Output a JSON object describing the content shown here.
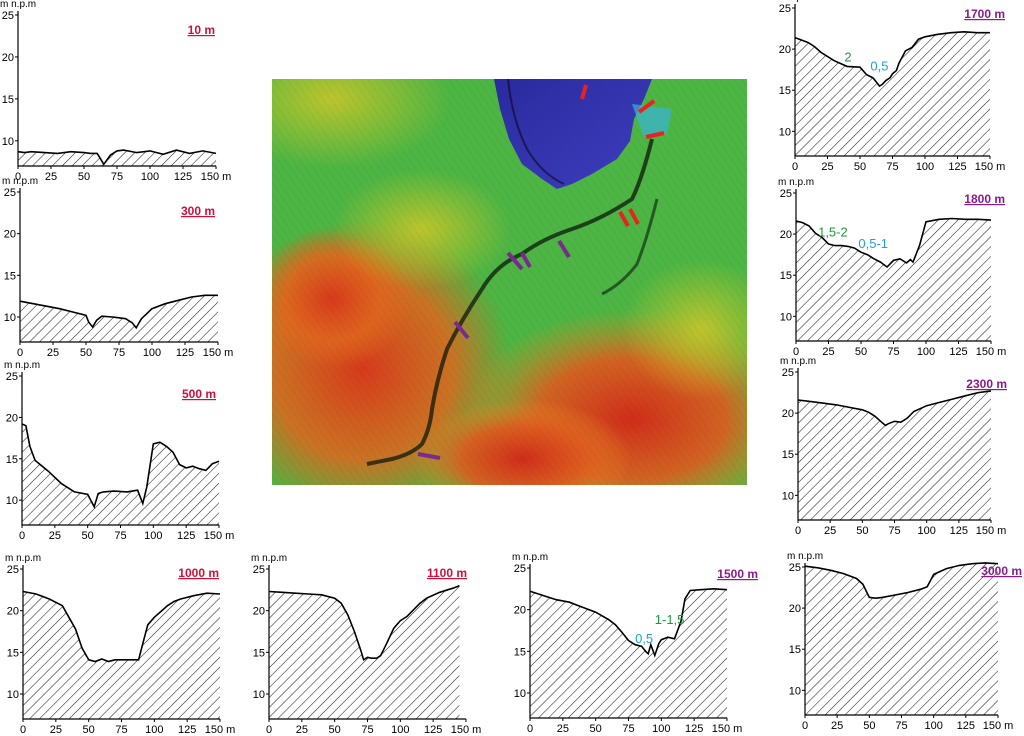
{
  "colors": {
    "label_red": "#d0103a",
    "label_purple": "#8a1b8f",
    "ann_green": "#1e9a3c",
    "ann_blue": "#1fa0d8",
    "marker_red": "#e8231f",
    "marker_purple": "#7a2a8e"
  },
  "common": {
    "y_unit": "m n.p.m",
    "x_unit": "m"
  },
  "map": {
    "name": "shaded-relief-elevation-map"
  },
  "chart_data": [
    {
      "id": "p10",
      "type": "area",
      "label": "10 m",
      "label_color": "#d0103a",
      "x": [
        0,
        5,
        10,
        20,
        30,
        40,
        50,
        55,
        60,
        65,
        70,
        75,
        80,
        90,
        100,
        110,
        120,
        130,
        140,
        150
      ],
      "y": [
        8.7,
        8.6,
        8.7,
        8.6,
        8.5,
        8.7,
        8.6,
        8.5,
        8.5,
        7.2,
        8.3,
        8.8,
        8.9,
        8.6,
        8.8,
        8.4,
        8.9,
        8.5,
        8.8,
        8.5
      ],
      "xlim": [
        0,
        150
      ],
      "ylim": [
        7,
        25
      ],
      "xticks": [
        0,
        25,
        50,
        75,
        100,
        125,
        150
      ],
      "yticks": [
        10,
        15,
        20,
        25
      ],
      "annotations": []
    },
    {
      "id": "p300",
      "type": "area",
      "label": "300 m",
      "label_color": "#d0103a",
      "x": [
        0,
        10,
        20,
        30,
        40,
        50,
        52,
        55,
        58,
        62,
        70,
        75,
        80,
        85,
        88,
        92,
        100,
        110,
        120,
        130,
        140,
        150
      ],
      "y": [
        11.9,
        11.6,
        11.3,
        11.0,
        10.6,
        10.2,
        9.4,
        8.8,
        9.6,
        10.1,
        10.0,
        9.9,
        9.8,
        9.3,
        8.7,
        9.8,
        11.0,
        11.6,
        12.0,
        12.4,
        12.6,
        12.6
      ],
      "xlim": [
        0,
        150
      ],
      "ylim": [
        7,
        25
      ],
      "xticks": [
        0,
        25,
        50,
        75,
        100,
        125,
        150
      ],
      "yticks": [
        10,
        15,
        20,
        25
      ],
      "annotations": []
    },
    {
      "id": "p500",
      "type": "area",
      "label": "500 m",
      "label_color": "#d0103a",
      "x": [
        0,
        3,
        6,
        10,
        20,
        30,
        40,
        50,
        55,
        58,
        62,
        70,
        80,
        88,
        92,
        95,
        100,
        105,
        110,
        115,
        120,
        125,
        130,
        135,
        140,
        145,
        150
      ],
      "y": [
        19.2,
        19.0,
        16.5,
        14.8,
        13.5,
        12.0,
        11.0,
        10.7,
        9.2,
        10.8,
        11.0,
        11.1,
        11.0,
        11.2,
        9.6,
        11.6,
        16.8,
        17.0,
        16.5,
        15.8,
        14.3,
        13.9,
        14.1,
        13.8,
        13.6,
        14.4,
        14.7
      ],
      "xlim": [
        0,
        150
      ],
      "ylim": [
        7,
        25
      ],
      "xticks": [
        0,
        25,
        50,
        75,
        100,
        125,
        150
      ],
      "yticks": [
        10,
        15,
        20,
        25
      ],
      "annotations": []
    },
    {
      "id": "p1000",
      "type": "area",
      "label": "1000 m",
      "label_color": "#d0103a",
      "x": [
        0,
        10,
        20,
        30,
        40,
        45,
        50,
        55,
        60,
        65,
        70,
        80,
        88,
        92,
        95,
        100,
        105,
        110,
        115,
        120,
        130,
        140,
        150
      ],
      "y": [
        22.3,
        22.0,
        21.4,
        20.6,
        17.8,
        15.5,
        14.1,
        13.9,
        14.2,
        13.9,
        14.1,
        14.1,
        14.1,
        16.5,
        18.3,
        19.2,
        19.9,
        20.6,
        21.1,
        21.4,
        21.8,
        22.1,
        22.0
      ],
      "xlim": [
        0,
        150
      ],
      "ylim": [
        7,
        25
      ],
      "xticks": [
        0,
        25,
        50,
        75,
        100,
        125,
        150
      ],
      "yticks": [
        10,
        15,
        20,
        25
      ],
      "annotations": []
    },
    {
      "id": "p1100",
      "type": "area",
      "label": "1100 m",
      "label_color": "#d0103a",
      "x": [
        0,
        10,
        20,
        30,
        40,
        50,
        55,
        60,
        65,
        70,
        72,
        75,
        78,
        82,
        85,
        90,
        95,
        100,
        105,
        110,
        115,
        120,
        130,
        140,
        145
      ],
      "y": [
        22.3,
        22.2,
        22.1,
        22.0,
        21.9,
        21.5,
        20.9,
        19.5,
        17.5,
        15.2,
        14.1,
        14.4,
        14.3,
        14.3,
        14.6,
        16.2,
        17.9,
        18.8,
        19.3,
        20.1,
        20.9,
        21.5,
        22.2,
        22.7,
        23.0
      ],
      "xlim": [
        0,
        150
      ],
      "ylim": [
        7,
        25
      ],
      "xticks": [
        0,
        25,
        50,
        75,
        100,
        125,
        150
      ],
      "yticks": [
        10,
        15,
        20,
        25
      ],
      "annotations": []
    },
    {
      "id": "p1500",
      "type": "area",
      "label": "1500 m",
      "label_color": "#8a1b8f",
      "x": [
        0,
        10,
        20,
        30,
        40,
        50,
        60,
        65,
        70,
        75,
        80,
        85,
        88,
        90,
        92,
        95,
        98,
        100,
        105,
        110,
        115,
        118,
        122,
        130,
        140,
        150
      ],
      "y": [
        22.2,
        21.7,
        21.2,
        20.9,
        20.3,
        19.7,
        18.8,
        18.2,
        17.3,
        16.3,
        15.8,
        15.6,
        15.0,
        14.7,
        15.8,
        14.5,
        15.9,
        16.4,
        16.7,
        16.5,
        18.6,
        21.3,
        22.3,
        22.4,
        22.5,
        22.4
      ],
      "xlim": [
        0,
        150
      ],
      "ylim": [
        7,
        25
      ],
      "xticks": [
        0,
        25,
        50,
        75,
        100,
        125,
        150
      ],
      "yticks": [
        10,
        15,
        20,
        25
      ],
      "annotations": [
        {
          "text": "0,5",
          "x": 80,
          "y": 16,
          "color": "#1fa0d8"
        },
        {
          "text": "1-1,5",
          "x": 95,
          "y": 18.3,
          "color": "#1e9a3c"
        }
      ]
    },
    {
      "id": "p1700",
      "type": "area",
      "label": "1700 m",
      "label_color": "#8a1b8f",
      "x": [
        0,
        10,
        15,
        20,
        30,
        40,
        50,
        55,
        60,
        63,
        65,
        67,
        70,
        73,
        75,
        78,
        80,
        85,
        90,
        95,
        100,
        110,
        120,
        130,
        140,
        150
      ],
      "y": [
        21.4,
        20.8,
        20.3,
        19.6,
        18.6,
        17.9,
        17.8,
        16.9,
        16.5,
        15.9,
        15.5,
        15.7,
        16.2,
        16.5,
        17.0,
        17.4,
        18.3,
        19.8,
        20.2,
        21.2,
        21.5,
        21.8,
        22.0,
        22.1,
        22.0,
        22.0
      ],
      "xlim": [
        0,
        150
      ],
      "ylim": [
        7,
        25
      ],
      "xticks": [
        0,
        25,
        50,
        75,
        100,
        125,
        150
      ],
      "yticks": [
        10,
        15,
        20,
        25
      ],
      "annotations": [
        {
          "text": "2",
          "x": 38,
          "y": 18.5,
          "color": "#1e9a3c"
        },
        {
          "text": "0,5",
          "x": 58,
          "y": 17.4,
          "color": "#1fa0d8"
        }
      ]
    },
    {
      "id": "p1800",
      "type": "area",
      "label": "1800 m",
      "label_color": "#8a1b8f",
      "x": [
        0,
        5,
        10,
        15,
        20,
        25,
        30,
        35,
        40,
        45,
        50,
        55,
        60,
        65,
        70,
        75,
        80,
        85,
        88,
        90,
        95,
        100,
        110,
        120,
        130,
        140,
        150
      ],
      "y": [
        21.6,
        21.4,
        21.0,
        20.1,
        19.6,
        18.8,
        18.6,
        18.6,
        18.5,
        18.3,
        17.8,
        17.5,
        17.0,
        16.6,
        16.0,
        16.8,
        17.0,
        16.5,
        16.9,
        16.6,
        18.6,
        21.5,
        21.8,
        21.9,
        21.8,
        21.8,
        21.7
      ],
      "xlim": [
        0,
        150
      ],
      "ylim": [
        7,
        25
      ],
      "xticks": [
        0,
        25,
        50,
        75,
        100,
        125,
        150
      ],
      "yticks": [
        10,
        15,
        20,
        25
      ],
      "annotations": [
        {
          "text": "1,5-2",
          "x": 17,
          "y": 19.7,
          "color": "#1e9a3c"
        },
        {
          "text": "0,5-1",
          "x": 48,
          "y": 18.3,
          "color": "#1fa0d8"
        }
      ]
    },
    {
      "id": "p2300",
      "type": "area",
      "label": "2300 m",
      "label_color": "#8a1b8f",
      "x": [
        0,
        10,
        20,
        30,
        40,
        50,
        55,
        60,
        65,
        68,
        70,
        75,
        80,
        85,
        90,
        100,
        110,
        120,
        130,
        140,
        150
      ],
      "y": [
        21.6,
        21.4,
        21.2,
        21.0,
        20.7,
        20.4,
        20.1,
        19.6,
        18.9,
        18.5,
        18.7,
        19.0,
        18.9,
        19.4,
        20.2,
        20.9,
        21.3,
        21.7,
        22.1,
        22.5,
        22.7
      ],
      "xlim": [
        0,
        150
      ],
      "ylim": [
        7,
        25
      ],
      "xticks": [
        0,
        25,
        50,
        75,
        100,
        125,
        150
      ],
      "yticks": [
        10,
        15,
        20,
        25
      ],
      "annotations": []
    },
    {
      "id": "p3000",
      "type": "area",
      "label": "3000 m",
      "label_color": "#8a1b8f",
      "x": [
        0,
        10,
        20,
        30,
        40,
        45,
        50,
        55,
        60,
        70,
        80,
        90,
        95,
        100,
        110,
        120,
        130,
        140,
        150
      ],
      "y": [
        25.1,
        24.9,
        24.6,
        24.2,
        23.6,
        22.9,
        21.3,
        21.2,
        21.3,
        21.6,
        21.9,
        22.3,
        22.6,
        24.1,
        24.8,
        25.2,
        25.4,
        25.5,
        25.4
      ],
      "xlim": [
        0,
        150
      ],
      "ylim": [
        7,
        25
      ],
      "xticks": [
        0,
        25,
        50,
        75,
        100,
        125,
        150
      ],
      "yticks": [
        10,
        15,
        20,
        25
      ],
      "annotations": []
    }
  ]
}
